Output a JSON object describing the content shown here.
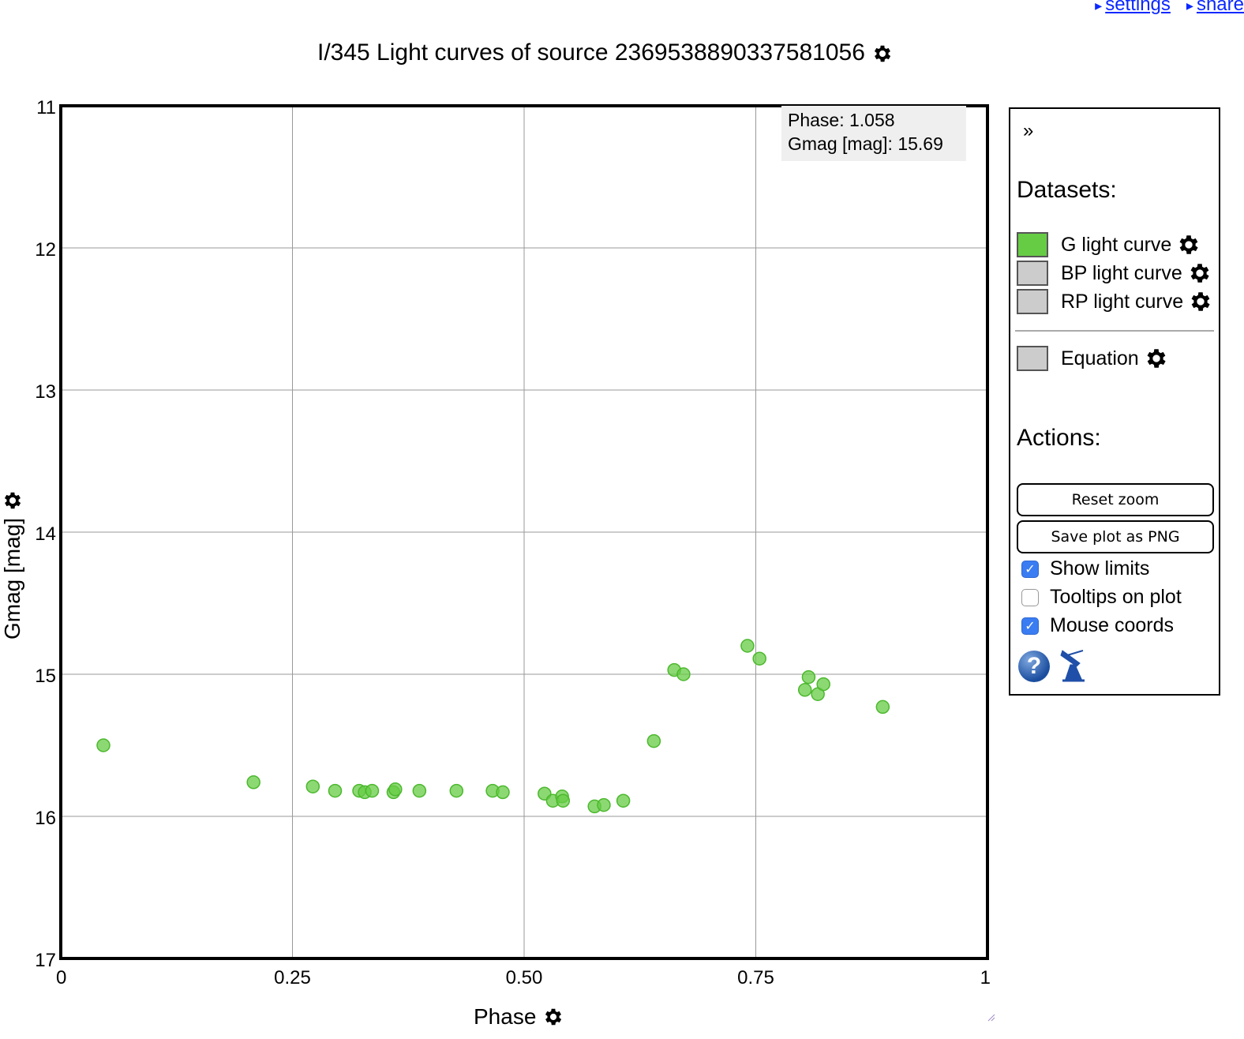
{
  "top_links": {
    "settings": "settings",
    "share": "share"
  },
  "title": "I/345 Light curves of source 2369538890337581056",
  "tooltip": {
    "line1": "Phase: 1.058",
    "line2": "Gmag [mag]: 15.69"
  },
  "panel": {
    "collapse": "»",
    "datasets_title": "Datasets:",
    "datasets": [
      {
        "label": "G light curve",
        "color": "#66cc44"
      },
      {
        "label": "BP light curve",
        "color": "#cccccc"
      },
      {
        "label": "RP light curve",
        "color": "#cccccc"
      }
    ],
    "equation": {
      "label": "Equation",
      "color": "#cccccc"
    },
    "actions_title": "Actions:",
    "reset_zoom": "Reset zoom",
    "save_png": "Save plot as PNG",
    "checkboxes": [
      {
        "label": "Show limits",
        "checked": true
      },
      {
        "label": "Tooltips on plot",
        "checked": false
      },
      {
        "label": "Mouse coords",
        "checked": true
      }
    ],
    "help_icon": "help-icon",
    "telescope_icon": "telescope-icon"
  },
  "chart_data": {
    "type": "scatter",
    "xlabel": "Phase",
    "ylabel": "Gmag [mag]",
    "xlim": [
      0,
      1
    ],
    "ylim": [
      17,
      11
    ],
    "y_inverted": true,
    "grid": true,
    "x_ticks": [
      "0",
      "0.25",
      "0.50",
      "0.75",
      "1"
    ],
    "x_tick_values": [
      0,
      0.25,
      0.5,
      0.75,
      1
    ],
    "y_ticks": [
      "11",
      "12",
      "13",
      "14",
      "15",
      "16",
      "17"
    ],
    "y_tick_values": [
      11,
      12,
      13,
      14,
      15,
      16,
      17
    ],
    "series": [
      {
        "name": "G light curve",
        "color": "#66cc44",
        "points": [
          [
            0.046,
            15.5
          ],
          [
            0.208,
            15.76
          ],
          [
            0.272,
            15.79
          ],
          [
            0.296,
            15.82
          ],
          [
            0.322,
            15.82
          ],
          [
            0.328,
            15.83
          ],
          [
            0.336,
            15.82
          ],
          [
            0.359,
            15.83
          ],
          [
            0.361,
            15.81
          ],
          [
            0.387,
            15.82
          ],
          [
            0.427,
            15.82
          ],
          [
            0.466,
            15.82
          ],
          [
            0.477,
            15.83
          ],
          [
            0.522,
            15.84
          ],
          [
            0.531,
            15.89
          ],
          [
            0.541,
            15.86
          ],
          [
            0.542,
            15.89
          ],
          [
            0.576,
            15.93
          ],
          [
            0.586,
            15.92
          ],
          [
            0.607,
            15.89
          ],
          [
            0.64,
            15.47
          ],
          [
            0.662,
            14.97
          ],
          [
            0.672,
            15.0
          ],
          [
            0.741,
            14.8
          ],
          [
            0.754,
            14.89
          ],
          [
            0.803,
            15.11
          ],
          [
            0.807,
            15.02
          ],
          [
            0.817,
            15.14
          ],
          [
            0.823,
            15.07
          ],
          [
            0.887,
            15.23
          ]
        ]
      }
    ]
  }
}
